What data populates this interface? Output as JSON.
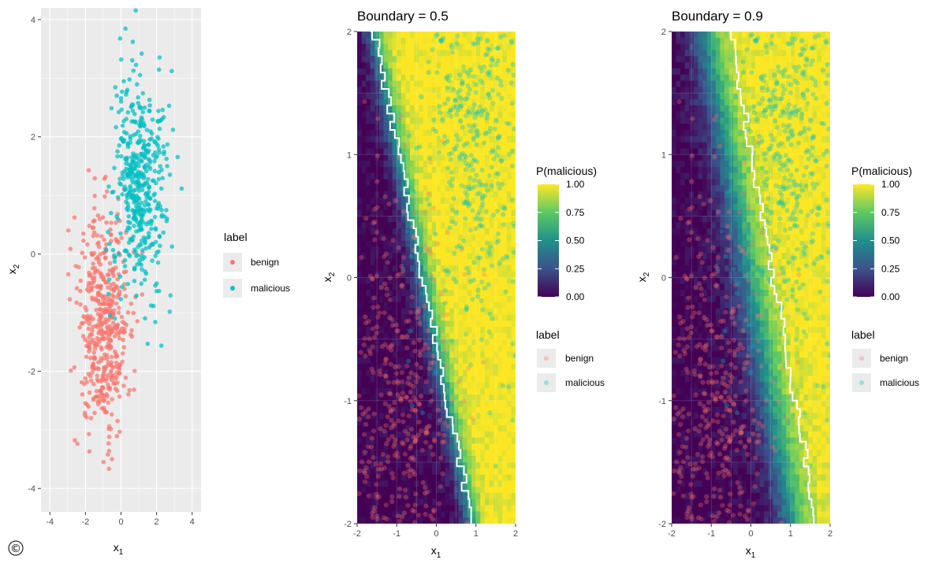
{
  "copyright_symbol": "©",
  "colors": {
    "benign": "#F8766D",
    "malicious": "#00BFC4",
    "panel_bg": "#EBEBEB",
    "grid": "#FFFFFF",
    "viridis": [
      "#440154",
      "#3B528B",
      "#21908C",
      "#5DC963",
      "#FDE725"
    ]
  },
  "chart_data": [
    {
      "type": "scatter",
      "title": "",
      "xlabel": "x",
      "xlabel_sub": "1",
      "ylabel": "x",
      "ylabel_sub": "2",
      "xlim": [
        -4.5,
        4.5
      ],
      "ylim": [
        -4.4,
        4.2
      ],
      "xticks": [
        -4,
        -2,
        0,
        2,
        4
      ],
      "yticks": [
        -4,
        -2,
        0,
        2,
        4
      ],
      "xtick_labels": [
        "-4",
        "-2",
        "0",
        "2",
        "4"
      ],
      "ytick_labels": [
        "-4",
        "-2",
        "0",
        "2",
        "4"
      ],
      "legend": {
        "title": "label",
        "entries": [
          "benign",
          "malicious"
        ],
        "position": "right"
      },
      "series": [
        {
          "name": "benign",
          "center": [
            -1.0,
            -1.2
          ],
          "spread": [
            0.75,
            0.95
          ],
          "count": 480
        },
        {
          "name": "malicious",
          "center": [
            1.0,
            1.2
          ],
          "spread": [
            0.75,
            0.95
          ],
          "count": 480
        }
      ]
    },
    {
      "type": "heatmap",
      "title": "Boundary = 0.5",
      "xlabel": "x",
      "xlabel_sub": "1",
      "ylabel": "x",
      "ylabel_sub": "2",
      "xlim": [
        -2,
        2
      ],
      "ylim": [
        -2,
        2
      ],
      "xticks": [
        -2,
        -1,
        0,
        1,
        2
      ],
      "yticks": [
        -2,
        -1,
        0,
        1,
        2
      ],
      "xtick_labels": [
        "-2",
        "-1",
        "0",
        "1",
        "2"
      ],
      "ytick_labels": [
        "-2",
        "-1",
        "0",
        "1",
        "2"
      ],
      "boundary": 0.5,
      "fill_legend": {
        "title": "P(malicious)",
        "ticks": [
          1.0,
          0.75,
          0.5,
          0.25,
          0.0
        ],
        "tick_labels": [
          "1.00",
          "0.75",
          "0.50",
          "0.25",
          "0.00"
        ]
      },
      "point_legend": {
        "title": "label",
        "entries": [
          "benign",
          "malicious"
        ]
      }
    },
    {
      "type": "heatmap",
      "title": "Boundary = 0.9",
      "xlabel": "x",
      "xlabel_sub": "1",
      "ylabel": "x",
      "ylabel_sub": "2",
      "xlim": [
        -2,
        2
      ],
      "ylim": [
        -2,
        2
      ],
      "xticks": [
        -2,
        -1,
        0,
        1,
        2
      ],
      "yticks": [
        -2,
        -1,
        0,
        1,
        2
      ],
      "xtick_labels": [
        "-2",
        "-1",
        "0",
        "1",
        "2"
      ],
      "ytick_labels": [
        "-2",
        "-1",
        "0",
        "1",
        "2"
      ],
      "boundary": 0.9,
      "fill_legend": {
        "title": "P(malicious)",
        "ticks": [
          1.0,
          0.75,
          0.5,
          0.25,
          0.0
        ],
        "tick_labels": [
          "1.00",
          "0.75",
          "0.50",
          "0.25",
          "0.00"
        ]
      },
      "point_legend": {
        "title": "label",
        "entries": [
          "benign",
          "malicious"
        ]
      }
    }
  ]
}
